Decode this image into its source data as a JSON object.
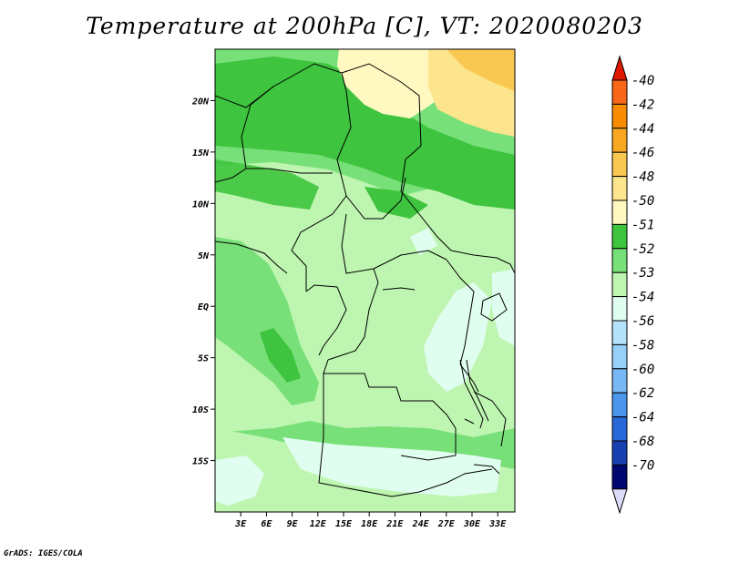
{
  "title": "Temperature at 200hPa [C], VT: 2020080203",
  "credit": "GrADS: IGES/COLA",
  "map": {
    "lon_range": [
      0,
      35
    ],
    "lat_range": [
      -20,
      25
    ],
    "lat_ticks": [
      {
        "value": 20,
        "label": "20N"
      },
      {
        "value": 15,
        "label": "15N"
      },
      {
        "value": 10,
        "label": "10N"
      },
      {
        "value": 5,
        "label": "5N"
      },
      {
        "value": 0,
        "label": "EQ"
      },
      {
        "value": -5,
        "label": "5S"
      },
      {
        "value": -10,
        "label": "10S"
      },
      {
        "value": -15,
        "label": "15S"
      }
    ],
    "lon_ticks": [
      {
        "value": 3,
        "label": "3E"
      },
      {
        "value": 6,
        "label": "6E"
      },
      {
        "value": 9,
        "label": "9E"
      },
      {
        "value": 12,
        "label": "12E"
      },
      {
        "value": 15,
        "label": "15E"
      },
      {
        "value": 18,
        "label": "18E"
      },
      {
        "value": 21,
        "label": "21E"
      },
      {
        "value": 24,
        "label": "24E"
      },
      {
        "value": 27,
        "label": "27E"
      },
      {
        "value": 30,
        "label": "30E"
      },
      {
        "value": 33,
        "label": "33E"
      }
    ]
  },
  "colorbar": {
    "levels": [
      {
        "label": "-40",
        "color": "#f04000"
      },
      {
        "label": "-42",
        "color": "#f86818"
      },
      {
        "label": "-44",
        "color": "#f88c00"
      },
      {
        "label": "-46",
        "color": "#f8a820"
      },
      {
        "label": "-48",
        "color": "#f8c850"
      },
      {
        "label": "-50",
        "color": "#fce58c"
      },
      {
        "label": "-51",
        "color": "#fff8c0"
      },
      {
        "label": "-52",
        "color": "#3ec43e"
      },
      {
        "label": "-53",
        "color": "#78e078"
      },
      {
        "label": "-54",
        "color": "#bef5b0"
      },
      {
        "label": "-56",
        "color": "#e0fef0"
      },
      {
        "label": "-58",
        "color": "#b4e2fa"
      },
      {
        "label": "-60",
        "color": "#96d0f8"
      },
      {
        "label": "-62",
        "color": "#78b8f4"
      },
      {
        "label": "-64",
        "color": "#4c96ec"
      },
      {
        "label": "-68",
        "color": "#2868d8"
      },
      {
        "label": "-70",
        "color": "#1840b0"
      }
    ],
    "bottom_color": "#000870",
    "under_color": "#dcdcf8",
    "top_color": "#e01800"
  }
}
